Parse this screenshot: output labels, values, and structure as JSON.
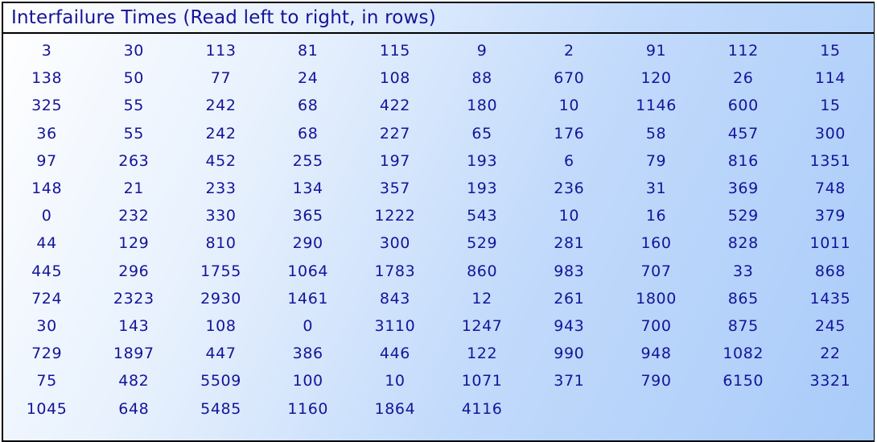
{
  "title": "Interfailure Times (Read left to right, in rows)",
  "rows": [
    [
      "3",
      "30",
      "113",
      "81",
      "115",
      "9",
      "2",
      "91",
      "112",
      "15"
    ],
    [
      "138",
      "50",
      "77",
      "24",
      "108",
      "88",
      "670",
      "120",
      "26",
      "114"
    ],
    [
      "325",
      "55",
      "242",
      "68",
      "422",
      "180",
      "10",
      "1146",
      "600",
      "15"
    ],
    [
      "36",
      "55",
      "242",
      "68",
      "227",
      "65",
      "176",
      "58",
      "457",
      "300"
    ],
    [
      "97",
      "263",
      "452",
      "255",
      "197",
      "193",
      "6",
      "79",
      "816",
      "1351"
    ],
    [
      "148",
      "21",
      "233",
      "134",
      "357",
      "193",
      "236",
      "31",
      "369",
      "748"
    ],
    [
      "0",
      "232",
      "330",
      "365",
      "1222",
      "543",
      "10",
      "16",
      "529",
      "379"
    ],
    [
      "44",
      "129",
      "810",
      "290",
      "300",
      "529",
      "281",
      "160",
      "828",
      "1011"
    ],
    [
      "445",
      "296",
      "1755",
      "1064",
      "1783",
      "860",
      "983",
      "707",
      "33",
      "868"
    ],
    [
      "724",
      "2323",
      "2930",
      "1461",
      "843",
      "12",
      "261",
      "1800",
      "865",
      "1435"
    ],
    [
      "30",
      "143",
      "108",
      "0",
      "3110",
      "1247",
      "943",
      "700",
      "875",
      "245"
    ],
    [
      "729",
      "1897",
      "447",
      "386",
      "446",
      "122",
      "990",
      "948",
      "1082",
      "22"
    ],
    [
      "75",
      "482",
      "5509",
      "100",
      "10",
      "1071",
      "371",
      "790",
      "6150",
      "3321"
    ],
    [
      "1045",
      "648",
      "5485",
      "1160",
      "1864",
      "4116"
    ]
  ],
  "colors": {
    "text": "#14149a",
    "gradient_start": "#ffffff",
    "gradient_end": "#a9cbf9",
    "border": "#000000"
  }
}
